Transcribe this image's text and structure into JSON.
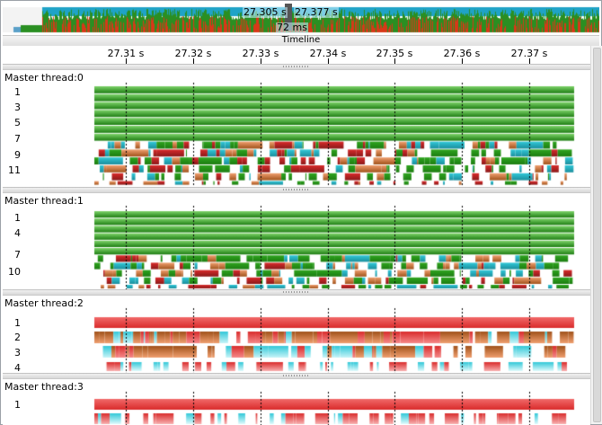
{
  "overview": {
    "start_label": "27.305 s",
    "end_label": "27.377 s",
    "duration_label": "72 ms",
    "timeline_title": "Timeline"
  },
  "ruler": {
    "ticks": [
      "27.31 s",
      "27.32 s",
      "27.33 s",
      "27.34 s",
      "27.35 s",
      "27.36 s",
      "27.37 s"
    ]
  },
  "threads": [
    {
      "title": "Master thread:0",
      "depth_labels": [
        "1",
        "3",
        "5",
        "7",
        "9",
        "11"
      ]
    },
    {
      "title": "Master thread:1",
      "depth_labels": [
        "1",
        "4",
        "7",
        "10"
      ]
    },
    {
      "title": "Master thread:2",
      "depth_labels": [
        "1",
        "2",
        "3",
        "4"
      ]
    },
    {
      "title": "Master thread:3",
      "depth_labels": [
        "1"
      ]
    }
  ],
  "colors": {
    "green": "#2fa51f",
    "green_dark": "#1d7d12",
    "red": "#d92b2b",
    "brown": "#a0521a",
    "orange": "#e87a3a",
    "cyan": "#31c8d8",
    "overview_bg": "#1fa3c7"
  }
}
